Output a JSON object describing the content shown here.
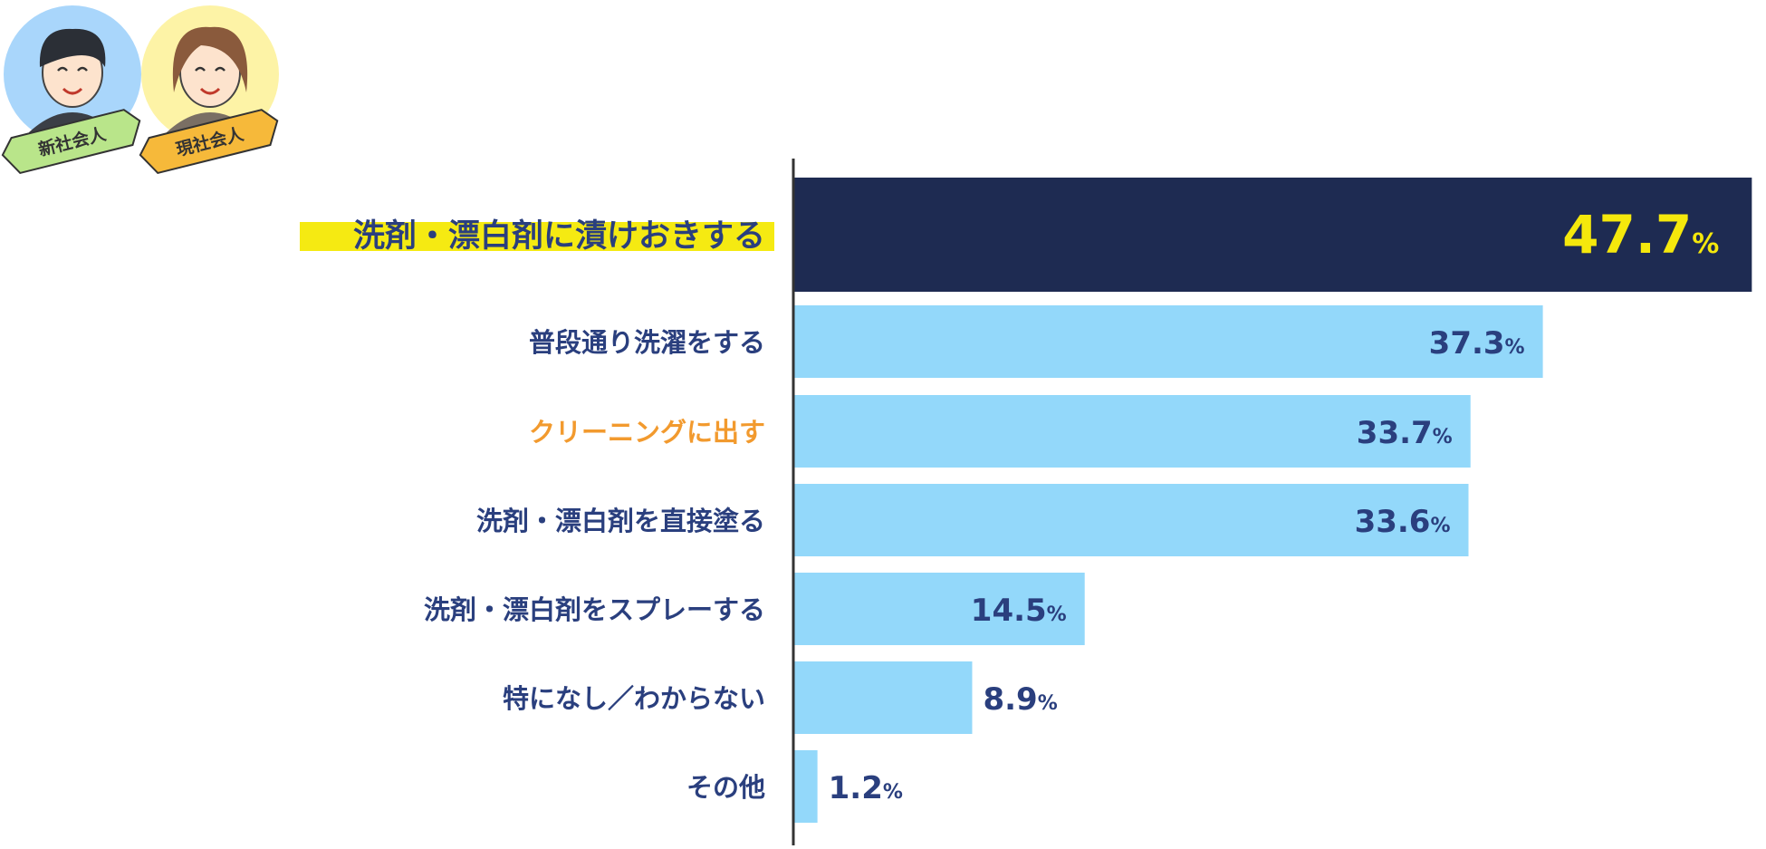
{
  "badges": [
    {
      "label": "新社会人",
      "ribbon_color": "#b9e58a",
      "circle_color": "#a9d6fb"
    },
    {
      "label": "現社会人",
      "ribbon_color": "#f6b93a",
      "circle_color": "#fdf3a6"
    }
  ],
  "colors": {
    "highlight_bar": "#1e2b52",
    "bar": "#93d8fa",
    "label_text": "#2a3f7e",
    "orange_label": "#f29a2e",
    "highlight_value": "#f5e80c",
    "marker": "#f5ea12",
    "axis": "#333333"
  },
  "chart_data": {
    "type": "bar",
    "orientation": "horizontal",
    "categories": [
      "洗剤・漂白剤に漬けおきする",
      "普段通り洗濯をする",
      "クリーニングに出す",
      "洗剤・漂白剤を直接塗る",
      "洗剤・漂白剤をスプレーする",
      "特になし／わからない",
      "その他"
    ],
    "values": [
      47.7,
      37.3,
      33.7,
      33.6,
      14.5,
      8.9,
      1.2
    ],
    "value_unit": "%",
    "highlight_index": 0,
    "orange_label_index": 2,
    "xlim": [
      0,
      48
    ],
    "grid": false,
    "legend": "none"
  }
}
